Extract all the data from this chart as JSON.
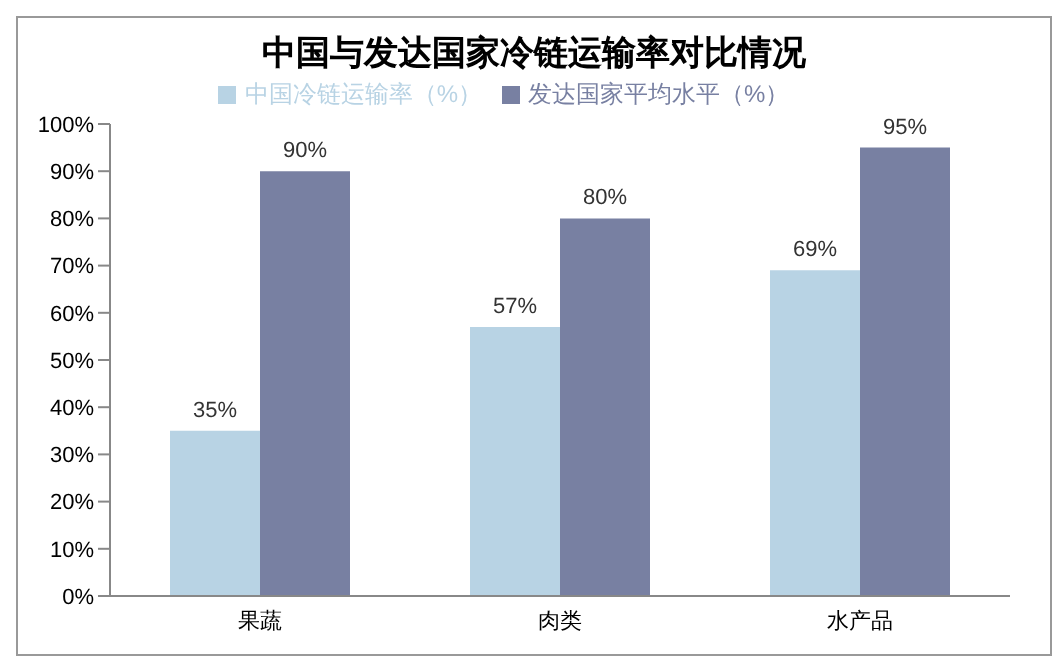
{
  "chart_data": {
    "type": "bar",
    "title": "中国与发达国家冷链运输率对比情况",
    "categories": [
      "果蔬",
      "肉类",
      "水产品"
    ],
    "series": [
      {
        "name": "中国冷链运输率（%）",
        "color": "#b8d3e4",
        "values": [
          35,
          57,
          69
        ],
        "value_labels": [
          "35%",
          "57%",
          "69%"
        ]
      },
      {
        "name": "发达国家平均水平（%）",
        "color": "#7880a2",
        "values": [
          90,
          80,
          95
        ],
        "value_labels": [
          "90%",
          "80%",
          "95%"
        ]
      }
    ],
    "ylim": [
      0,
      100
    ],
    "yticks": [
      {
        "value": 0,
        "label": "0%"
      },
      {
        "value": 10,
        "label": "10%"
      },
      {
        "value": 20,
        "label": "20%"
      },
      {
        "value": 30,
        "label": "30%"
      },
      {
        "value": 40,
        "label": "40%"
      },
      {
        "value": 50,
        "label": "50%"
      },
      {
        "value": 60,
        "label": "60%"
      },
      {
        "value": 70,
        "label": "70%"
      },
      {
        "value": 80,
        "label": "80%"
      },
      {
        "value": 90,
        "label": "90%"
      },
      {
        "value": 100,
        "label": "100%"
      }
    ],
    "grid": false,
    "legend": "top"
  }
}
